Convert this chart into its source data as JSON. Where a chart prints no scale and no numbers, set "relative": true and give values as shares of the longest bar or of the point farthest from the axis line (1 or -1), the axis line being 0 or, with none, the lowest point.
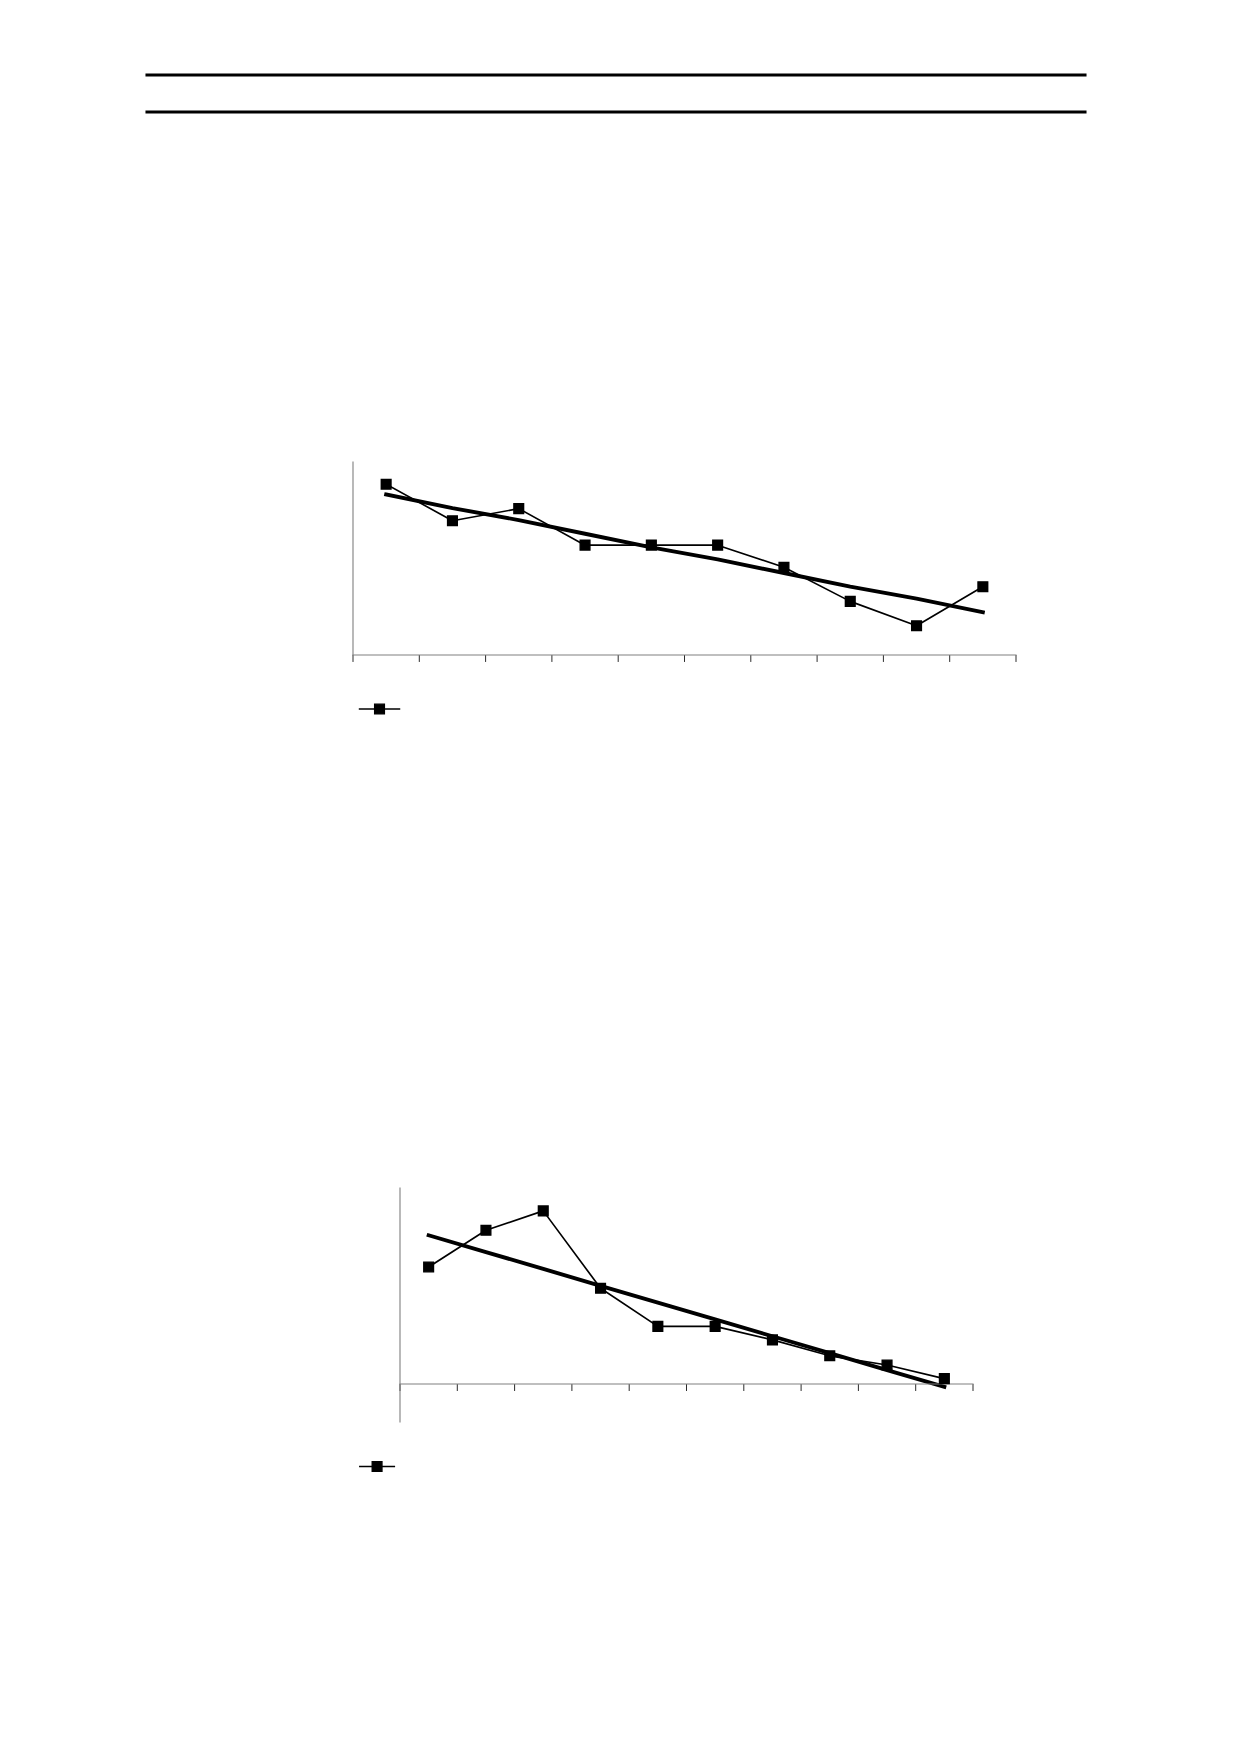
{
  "chart_data": [
    {
      "type": "line",
      "relative": true,
      "categories": [
        null,
        null,
        null,
        null,
        null,
        null,
        null,
        null,
        null,
        null
      ],
      "marker": "square",
      "grid": false,
      "series": [
        {
          "color": "#000000",
          "values": [
            1,
            0.786,
            0.857,
            0.643,
            0.643,
            0.643,
            0.514,
            0.314,
            0.171,
            0.4
          ]
        },
        {
          "type": "line",
          "color": "#000000",
          "marker": "none",
          "values": [
            0.94,
            0.86,
            0.79,
            0.71,
            0.63,
            0.56,
            0.48,
            0.4,
            0.33,
            0.25
          ]
        }
      ]
    },
    {
      "type": "line",
      "relative": true,
      "categories": [
        null,
        null,
        null,
        null,
        null,
        null,
        null,
        null,
        null,
        null
      ],
      "marker": "square",
      "grid": false,
      "series": [
        {
          "color": "#000000",
          "values": [
            0.676,
            0.888,
            1,
            0.553,
            0.333,
            0.333,
            0.255,
            0.163,
            0.11,
            0.031
          ]
        },
        {
          "type": "line",
          "color": "#000000",
          "marker": "none",
          "values": [
            0.859,
            0.762,
            0.665,
            0.567,
            0.47,
            0.373,
            0.276,
            0.179,
            0.081,
            -0.016
          ]
        }
      ]
    }
  ]
}
